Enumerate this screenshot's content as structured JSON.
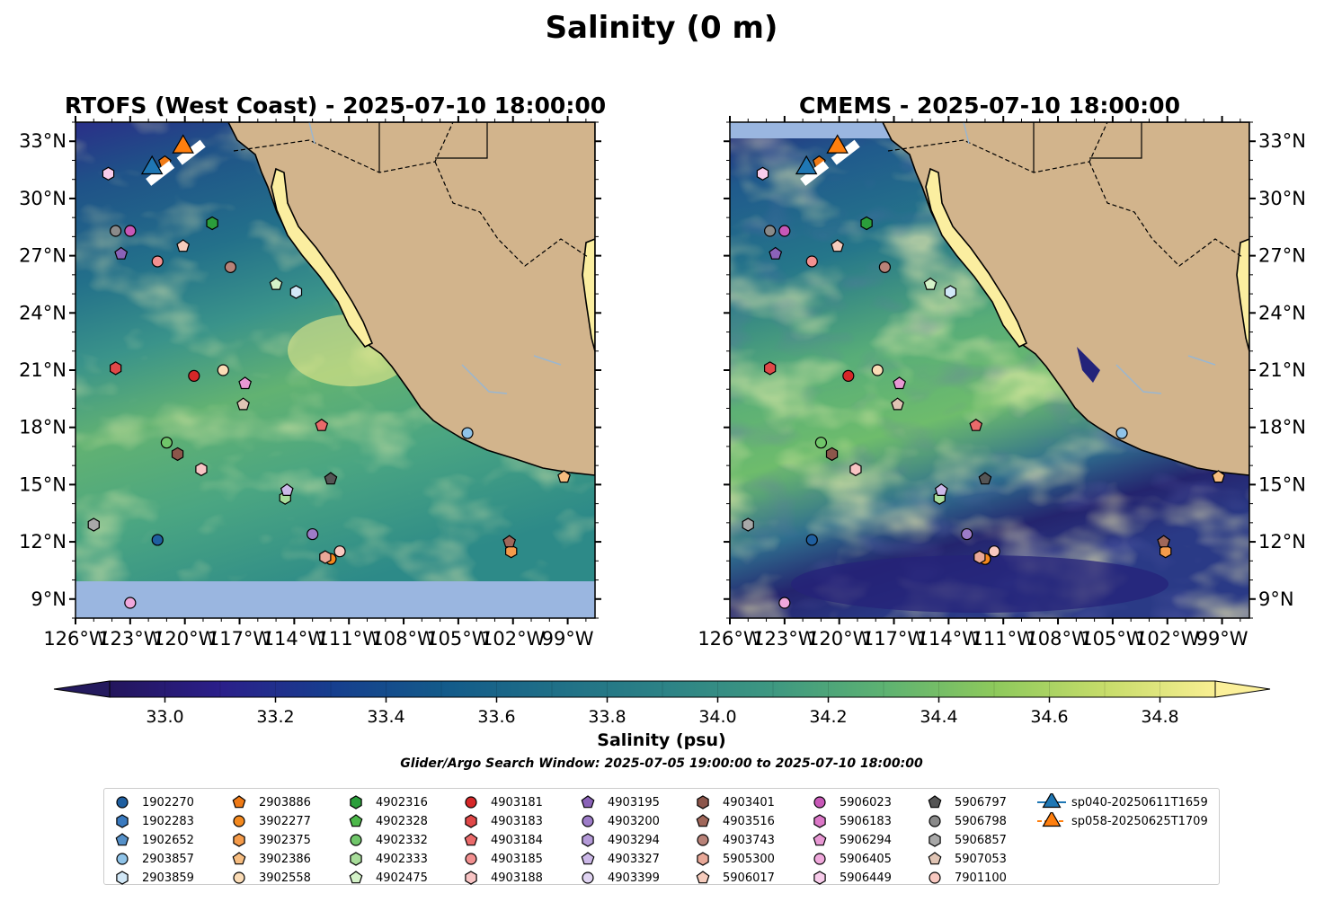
{
  "figure": {
    "title": "Salinity (0 m)",
    "subtitle": "Glider/Argo Search Window: 2025-07-05 19:00:00 to 2025-07-10 18:00:00"
  },
  "panels": [
    {
      "id": "rtofs",
      "title": "RTOFS (West Coast) - 2025-07-10 18:00:00",
      "tick_side": "left"
    },
    {
      "id": "cmems",
      "title": "CMEMS - 2025-07-10 18:00:00",
      "tick_side": "right"
    }
  ],
  "map": {
    "lon_range": [
      -126,
      -97.5
    ],
    "lat_range": [
      8,
      34
    ],
    "lon_ticks": [
      "126°W",
      "123°W",
      "120°W",
      "117°W",
      "114°W",
      "111°W",
      "108°W",
      "105°W",
      "102°W",
      "99°W"
    ],
    "lat_ticks": [
      "33°N",
      "30°N",
      "27°N",
      "24°N",
      "21°N",
      "18°N",
      "15°N",
      "12°N",
      "9°N"
    ],
    "land_color": "#d2b48c",
    "nodata_color": "#9ab6e0",
    "water_color": "#a8c1e0"
  },
  "colorbar": {
    "label": "Salinity (psu)",
    "ticks": [
      "33.0",
      "33.2",
      "33.4",
      "33.6",
      "33.8",
      "34.0",
      "34.2",
      "34.4",
      "34.6",
      "34.8"
    ],
    "range": [
      32.9,
      34.9
    ],
    "colormap": "haline",
    "levels": 20,
    "extend": "both"
  },
  "legend": {
    "items": [
      {
        "label": "1902270",
        "marker": "circle",
        "color": "#1f5fa0",
        "lon": -121.5,
        "lat": 12.1
      },
      {
        "label": "1902283",
        "marker": "hexagon",
        "color": "#3a7abf"
      },
      {
        "label": "1902652",
        "marker": "pentagon",
        "color": "#5590c8"
      },
      {
        "label": "2903857",
        "marker": "circle",
        "color": "#8fc3e8",
        "lon": -104.5,
        "lat": 17.7
      },
      {
        "label": "2903859",
        "marker": "hexagon",
        "color": "#d2e8f7",
        "lon": -113.9,
        "lat": 25.1
      },
      {
        "label": "2903886",
        "marker": "pentagon",
        "color": "#ef7a16",
        "lon": -121.1,
        "lat": 31.9
      },
      {
        "label": "3902277",
        "marker": "circle",
        "color": "#f4891e",
        "lon": -112.0,
        "lat": 11.1
      },
      {
        "label": "3902375",
        "marker": "hexagon",
        "color": "#f59b4a",
        "lon": -102.1,
        "lat": 11.5
      },
      {
        "label": "3902386",
        "marker": "pentagon",
        "color": "#f7bd80",
        "lon": -99.2,
        "lat": 15.4
      },
      {
        "label": "3902558",
        "marker": "circle",
        "color": "#fbdcb6",
        "lon": -117.9,
        "lat": 21.0
      },
      {
        "label": "4902316",
        "marker": "hexagon",
        "color": "#2b9e3b",
        "lon": -118.5,
        "lat": 28.7
      },
      {
        "label": "4902328",
        "marker": "pentagon",
        "color": "#4db84a"
      },
      {
        "label": "4902332",
        "marker": "circle",
        "color": "#70c66a",
        "lon": -121.0,
        "lat": 17.2
      },
      {
        "label": "4902333",
        "marker": "hexagon",
        "color": "#a8dd9a",
        "lon": -114.5,
        "lat": 14.3
      },
      {
        "label": "4902475",
        "marker": "pentagon",
        "color": "#d4f2c8",
        "lon": -115.0,
        "lat": 25.5
      },
      {
        "label": "4903181",
        "marker": "circle",
        "color": "#d62728",
        "lon": -119.5,
        "lat": 20.7
      },
      {
        "label": "4903183",
        "marker": "hexagon",
        "color": "#e04848",
        "lon": -123.8,
        "lat": 21.1
      },
      {
        "label": "4903184",
        "marker": "pentagon",
        "color": "#ea6a6a",
        "lon": -112.5,
        "lat": 18.1
      },
      {
        "label": "4903185",
        "marker": "circle",
        "color": "#f29090",
        "lon": -121.5,
        "lat": 26.7
      },
      {
        "label": "4903188",
        "marker": "hexagon",
        "color": "#f8c4c4",
        "lon": -119.1,
        "lat": 15.8
      },
      {
        "label": "4903195",
        "marker": "pentagon",
        "color": "#8a62b8",
        "lon": -123.5,
        "lat": 27.1
      },
      {
        "label": "4903200",
        "marker": "circle",
        "color": "#9d7cc8",
        "lon": -113.0,
        "lat": 12.4
      },
      {
        "label": "4903294",
        "marker": "hexagon",
        "color": "#b49ad8"
      },
      {
        "label": "4903327",
        "marker": "pentagon",
        "color": "#ccb8e8",
        "lon": -114.4,
        "lat": 14.7
      },
      {
        "label": "4903399",
        "marker": "circle",
        "color": "#e0d4f2"
      },
      {
        "label": "4903401",
        "marker": "hexagon",
        "color": "#8c564b",
        "lon": -120.4,
        "lat": 16.6
      },
      {
        "label": "4903516",
        "marker": "pentagon",
        "color": "#a0675a",
        "lon": -102.2,
        "lat": 12.0
      },
      {
        "label": "4903743",
        "marker": "circle",
        "color": "#b88278",
        "lon": -117.5,
        "lat": 26.4
      },
      {
        "label": "5905300",
        "marker": "hexagon",
        "color": "#e8a898",
        "lon": -112.3,
        "lat": 11.2
      },
      {
        "label": "5906017",
        "marker": "pentagon",
        "color": "#f6ccbd",
        "lon": -120.1,
        "lat": 27.5
      },
      {
        "label": "5906023",
        "marker": "circle",
        "color": "#c858b8",
        "lon": -123.0,
        "lat": 28.3
      },
      {
        "label": "5906183",
        "marker": "hexagon",
        "color": "#dc78c8"
      },
      {
        "label": "5906294",
        "marker": "pentagon",
        "color": "#e898d4",
        "lon": -116.7,
        "lat": 20.3
      },
      {
        "label": "5906405",
        "marker": "circle",
        "color": "#f0a8dc",
        "lon": -123.0,
        "lat": 8.8
      },
      {
        "label": "5906449",
        "marker": "hexagon",
        "color": "#f8cceb",
        "lon": -124.2,
        "lat": 31.3
      },
      {
        "label": "5906797",
        "marker": "pentagon",
        "color": "#555555",
        "lon": -112.0,
        "lat": 15.3
      },
      {
        "label": "5906798",
        "marker": "circle",
        "color": "#8a8a8a",
        "lon": -123.8,
        "lat": 28.3
      },
      {
        "label": "5906857",
        "marker": "hexagon",
        "color": "#a8a8a8",
        "lon": -125.0,
        "lat": 12.9
      },
      {
        "label": "5907053",
        "marker": "pentagon",
        "color": "#e0c4b4",
        "lon": -116.8,
        "lat": 19.2
      },
      {
        "label": "7901100",
        "marker": "circle",
        "color": "#f8c8c0",
        "lon": -111.5,
        "lat": 11.5
      },
      {
        "label": "sp040-20250611T1659",
        "marker": "triangle",
        "color": "#1f77b4",
        "lon": -121.8,
        "lat": 31.6
      },
      {
        "label": "sp058-20250625T1709",
        "marker": "triangle",
        "color": "#ff7f0e",
        "lon": -120.1,
        "lat": 32.7
      }
    ]
  }
}
